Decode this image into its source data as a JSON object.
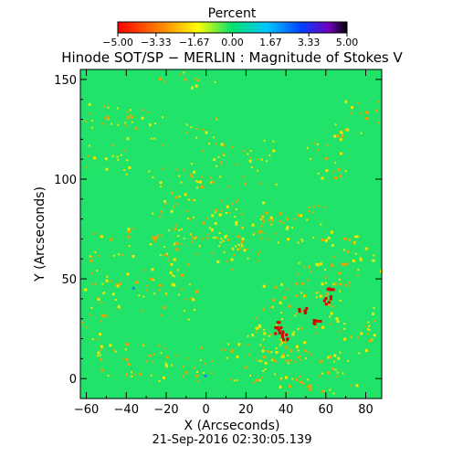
{
  "chart_data": {
    "type": "heatmap",
    "title": "Hinode SOT/SP − MERLIN : Magnitude of Stokes V",
    "xlabel": "X (Arcseconds)",
    "ylabel": "Y (Arcseconds)",
    "xlim": [
      -63,
      88
    ],
    "ylim": [
      -10,
      155
    ],
    "x_ticks": [
      -60,
      -40,
      -20,
      0,
      20,
      40,
      60,
      80
    ],
    "y_ticks": [
      0,
      50,
      100,
      150
    ],
    "x_tick_labels": [
      "−60",
      "−40",
      "−20",
      "0",
      "20",
      "40",
      "60",
      "80"
    ],
    "y_tick_labels": [
      "0",
      "50",
      "100",
      "150"
    ],
    "colorbar": {
      "title": "Percent",
      "range": [
        -5.0,
        5.0
      ],
      "tick_labels": [
        "−5.00",
        "−3.33",
        "−1.67",
        "0.00",
        "1.67",
        "3.33",
        "5.00"
      ],
      "colors": [
        "#ff0000",
        "#ff8c00",
        "#ffff00",
        "#00e070",
        "#00c8ff",
        "#0040ff",
        "#7000c0",
        "#000000"
      ]
    },
    "background_color": "#22e36a",
    "grid": false
  },
  "timestamp": "21-Sep-2016 02:30:05.139"
}
